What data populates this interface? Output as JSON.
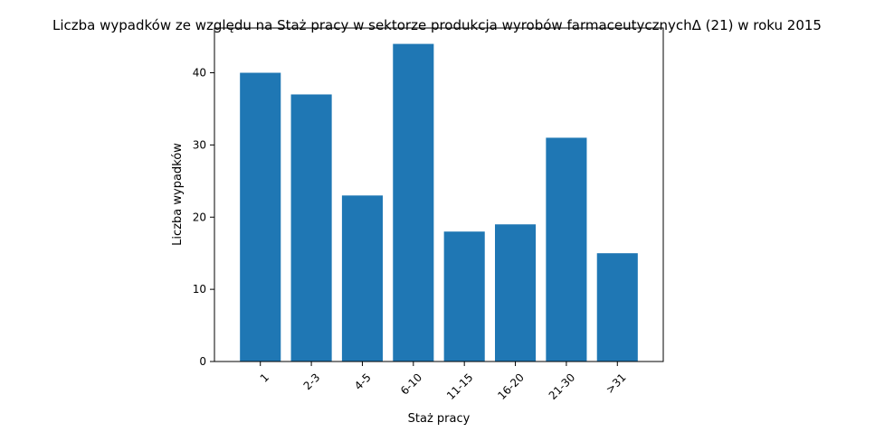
{
  "chart_data": {
    "type": "bar",
    "title": "Liczba wypadków ze względu na Staż pracy w sektorze produkcja wyrobów farmaceutycznychΔ (21) w roku 2015",
    "xlabel": "Staż pracy",
    "ylabel": "Liczba wypadków",
    "categories": [
      "1",
      "2-3",
      "4-5",
      "6-10",
      "11-15",
      "16-20",
      "21-30",
      ">31"
    ],
    "values": [
      40,
      37,
      23,
      44,
      18,
      19,
      31,
      15
    ],
    "ylim": [
      0,
      46.2
    ],
    "yticks": [
      0,
      10,
      20,
      30,
      40
    ],
    "bar_color": "#1f77b4",
    "grid": false,
    "xtick_rotation": 45
  }
}
